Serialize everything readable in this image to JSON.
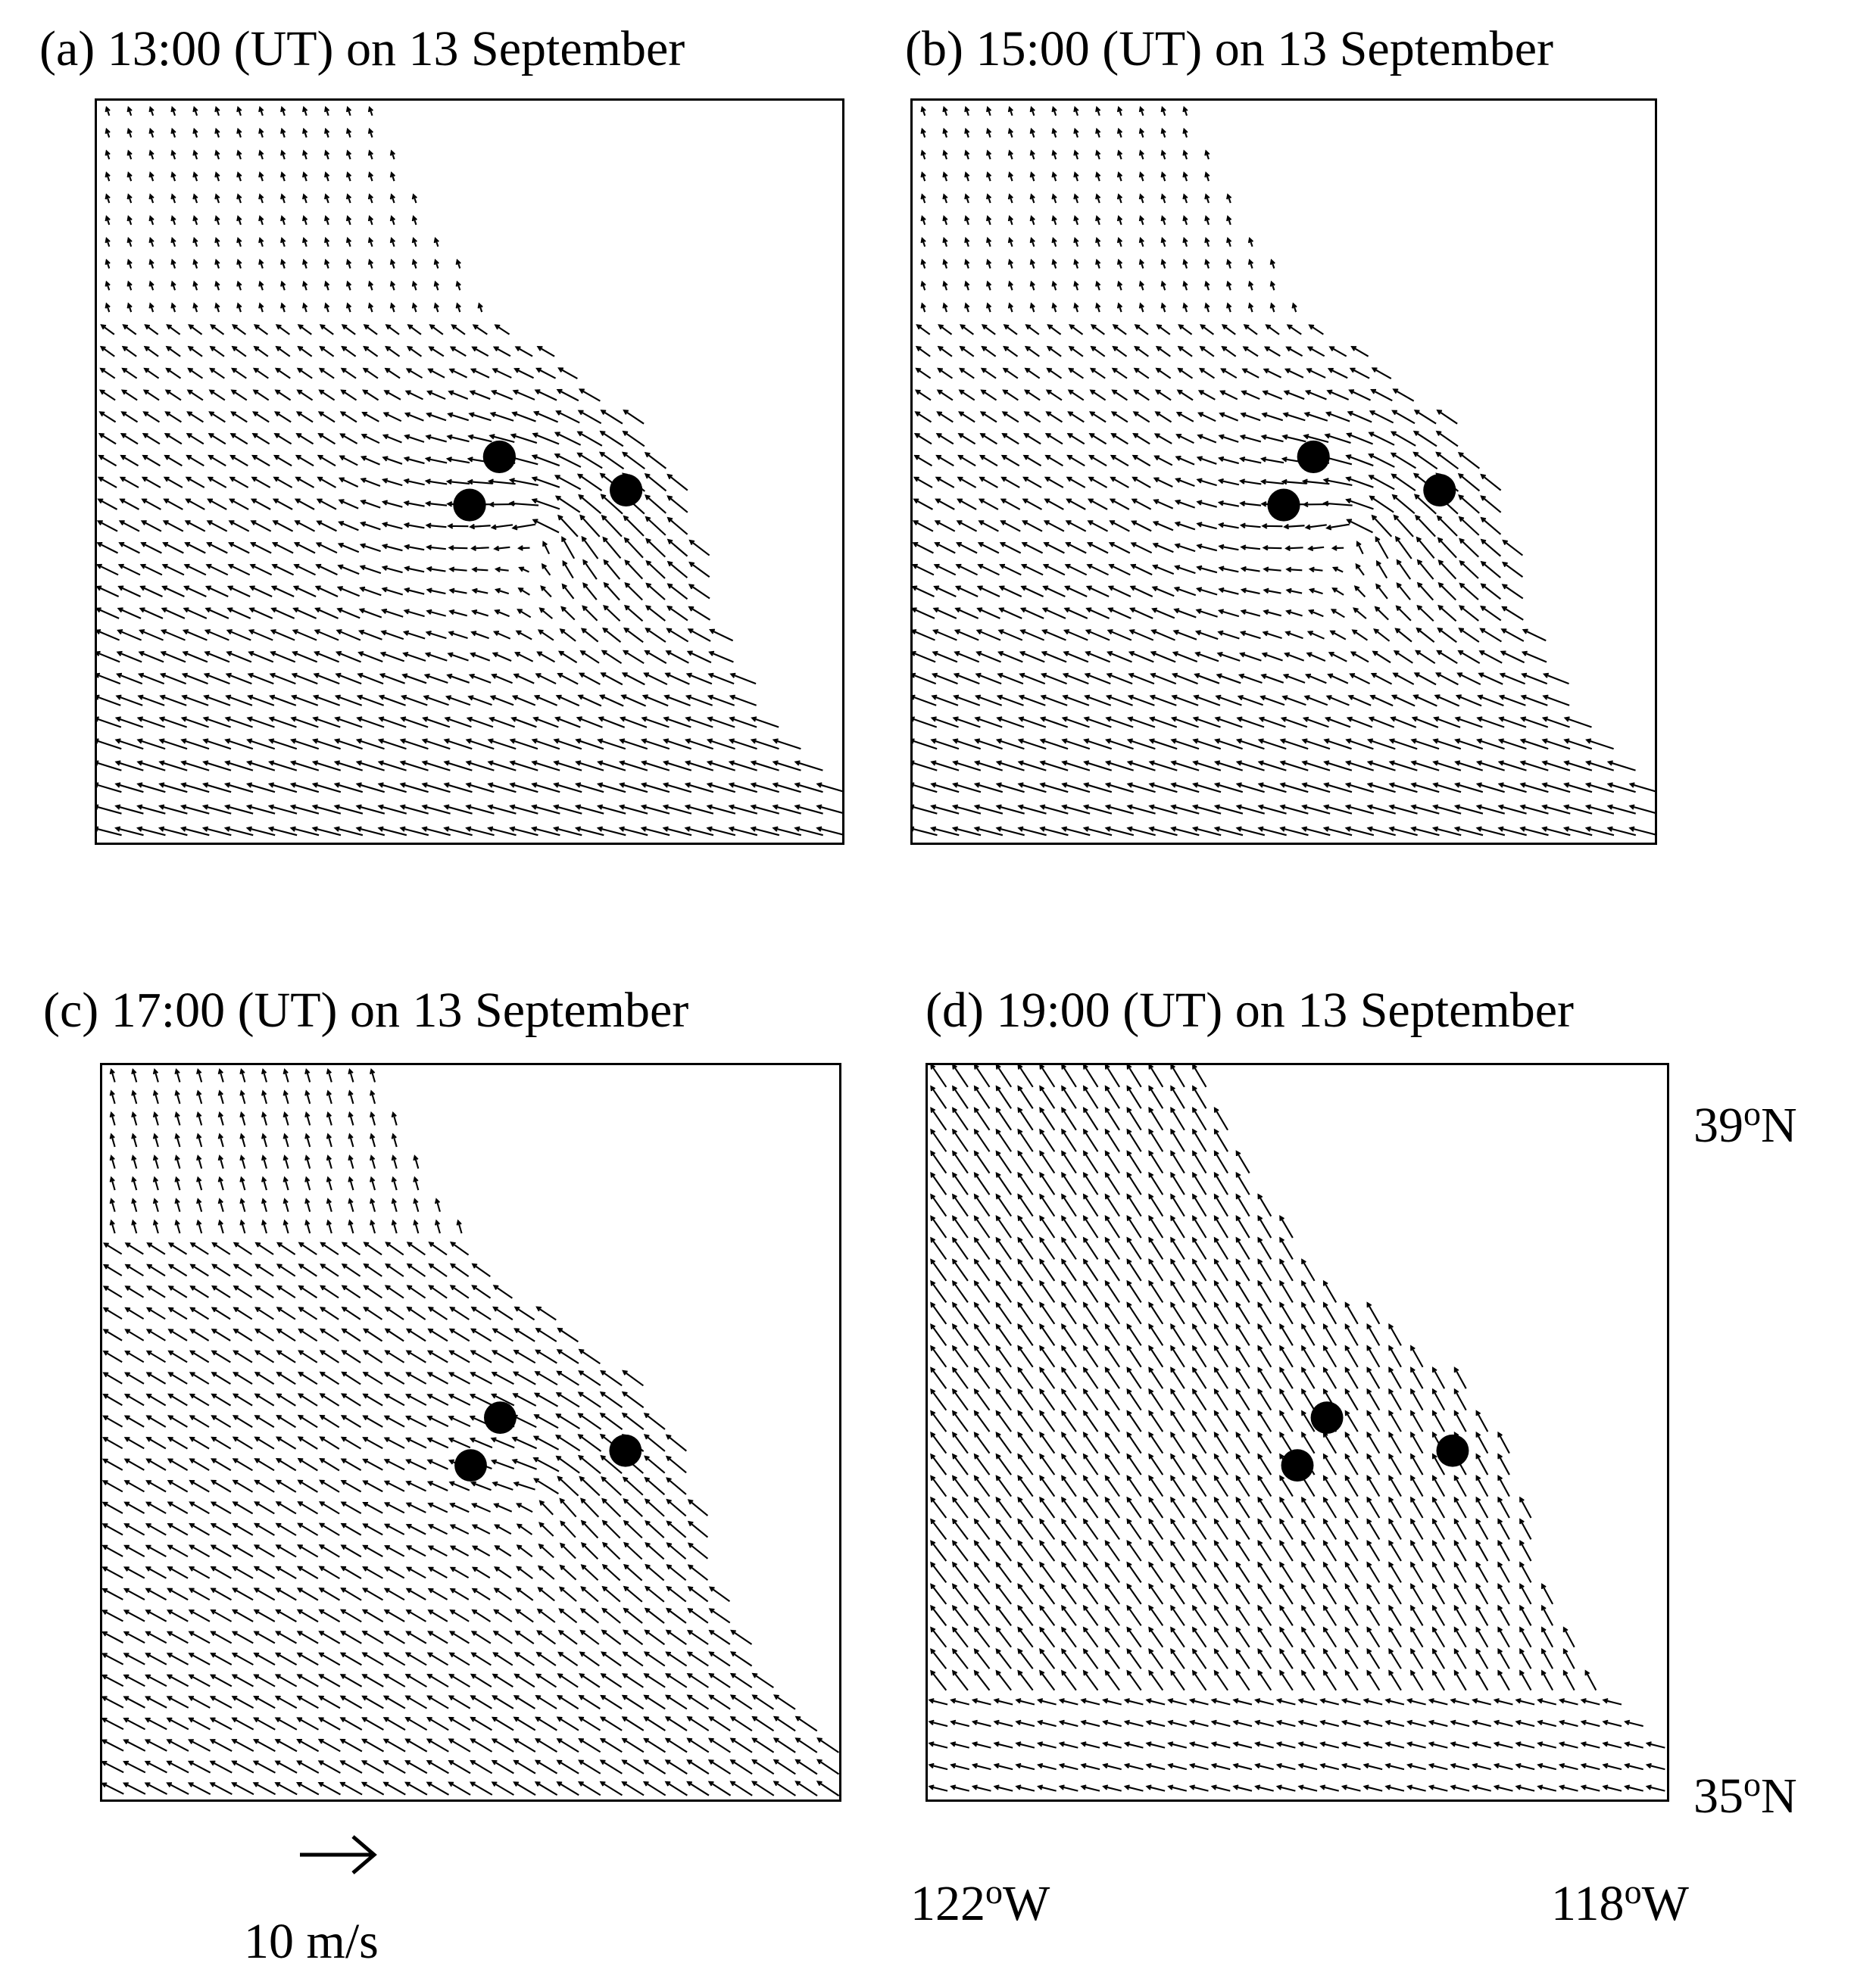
{
  "figure": {
    "panels": [
      {
        "id": "a",
        "title": "(a) 13:00 (UT) on 13 September",
        "time": "13:00",
        "pattern": "offshore"
      },
      {
        "id": "b",
        "title": "(b) 15:00 (UT) on 13 September",
        "time": "15:00",
        "pattern": "offshore"
      },
      {
        "id": "c",
        "title": "(c) 17:00 (UT) on 13 September",
        "time": "17:00",
        "pattern": "transition"
      },
      {
        "id": "d",
        "title": "(d) 19:00 (UT) on 13 September",
        "time": "19:00",
        "pattern": "onshore"
      }
    ],
    "axes": {
      "lat_top": "39",
      "lat_bottom": "35",
      "lon_left": "122",
      "lon_right": "118",
      "lat_unit": "N",
      "lon_unit": "W",
      "degree_symbol": "o"
    },
    "scale": {
      "label": "10 m/s",
      "speed": 10
    },
    "colors": {
      "arrow": "#000000",
      "dot": "#000000",
      "background": "#ffffff"
    },
    "station_markers": 3
  }
}
